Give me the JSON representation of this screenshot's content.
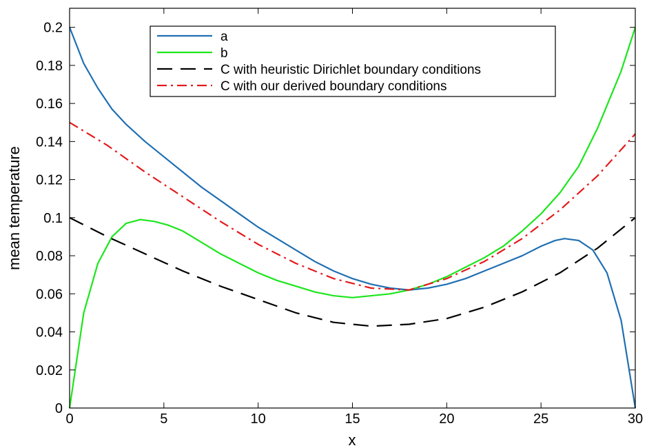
{
  "chart_data": {
    "type": "line",
    "title": "",
    "xlabel": "x",
    "ylabel": "mean temperature",
    "xlim": [
      0,
      30
    ],
    "ylim": [
      0,
      0.21
    ],
    "xticks": [
      0,
      5,
      10,
      15,
      20,
      25,
      30
    ],
    "yticks": [
      0,
      0.02,
      0.04,
      0.06,
      0.08,
      0.1,
      0.12,
      0.14,
      0.16,
      0.18,
      0.2
    ],
    "xtick_labels": [
      "0",
      "5",
      "10",
      "15",
      "20",
      "25",
      "30"
    ],
    "ytick_labels": [
      "0",
      "0.02",
      "0.04",
      "0.06",
      "0.08",
      "0.1",
      "0.12",
      "0.14",
      "0.16",
      "0.18",
      "0.2"
    ],
    "grid": false,
    "legend_position": "top-center",
    "series": [
      {
        "name": "a",
        "color": "#1f6fb2",
        "dash": "solid",
        "x": [
          0,
          0.75,
          1.5,
          2.25,
          3,
          4,
          5,
          6,
          7,
          8,
          9,
          10,
          11,
          12,
          13,
          14,
          15,
          16,
          17,
          18,
          19,
          20,
          21,
          22,
          23,
          24,
          25,
          25.75,
          26.25,
          27,
          27.75,
          28.5,
          29.25,
          30
        ],
        "y": [
          0.2,
          0.181,
          0.168,
          0.157,
          0.149,
          0.14,
          0.132,
          0.124,
          0.116,
          0.109,
          0.102,
          0.095,
          0.089,
          0.083,
          0.077,
          0.072,
          0.068,
          0.065,
          0.063,
          0.062,
          0.063,
          0.065,
          0.068,
          0.072,
          0.076,
          0.08,
          0.085,
          0.088,
          0.089,
          0.088,
          0.083,
          0.071,
          0.046,
          0
        ]
      },
      {
        "name": "b",
        "color": "#1be61b",
        "dash": "solid",
        "x": [
          0,
          0.75,
          1.5,
          2.25,
          3,
          3.75,
          4.5,
          5.25,
          6,
          7,
          8,
          9,
          10,
          11,
          12,
          13,
          14,
          15,
          16,
          17,
          18,
          19,
          20,
          21,
          22,
          23,
          24,
          25,
          26,
          27,
          28,
          28.75,
          29.25,
          30
        ],
        "y": [
          0,
          0.05,
          0.076,
          0.09,
          0.097,
          0.099,
          0.098,
          0.096,
          0.093,
          0.087,
          0.081,
          0.076,
          0.071,
          0.067,
          0.064,
          0.061,
          0.059,
          0.058,
          0.059,
          0.06,
          0.062,
          0.065,
          0.069,
          0.074,
          0.079,
          0.085,
          0.093,
          0.102,
          0.113,
          0.127,
          0.147,
          0.165,
          0.177,
          0.2
        ]
      },
      {
        "name": "C with heuristic Dirichlet boundary conditions",
        "color": "#000000",
        "dash": "long-dash",
        "x": [
          0,
          2,
          4,
          6,
          8,
          10,
          12,
          14,
          16,
          18,
          20,
          22,
          24,
          26,
          28,
          30
        ],
        "y": [
          0.1,
          0.09,
          0.081,
          0.072,
          0.064,
          0.057,
          0.05,
          0.045,
          0.043,
          0.044,
          0.047,
          0.053,
          0.061,
          0.071,
          0.084,
          0.1
        ]
      },
      {
        "name": "C with our derived boundary conditions",
        "color": "#e31a1c",
        "dash": "dash-dot",
        "x": [
          0,
          2,
          4,
          6,
          8,
          10,
          12,
          14,
          16,
          18,
          20,
          22,
          24,
          26,
          28,
          30
        ],
        "y": [
          0.15,
          0.138,
          0.124,
          0.111,
          0.098,
          0.086,
          0.076,
          0.068,
          0.063,
          0.062,
          0.068,
          0.077,
          0.089,
          0.104,
          0.122,
          0.144
        ]
      }
    ]
  }
}
